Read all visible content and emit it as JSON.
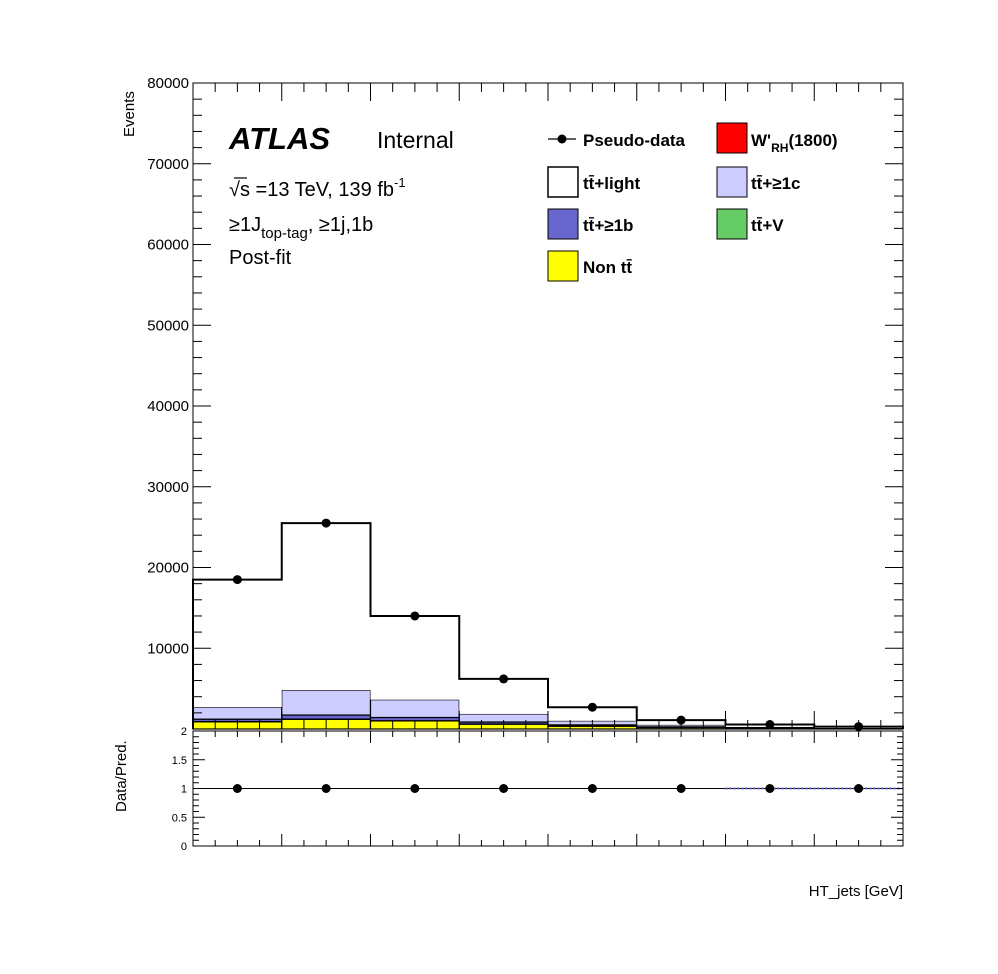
{
  "annotations": {
    "atlas": "ATLAS",
    "internal": "Internal",
    "energy": "√s =13 TeV, 139 fb",
    "energy_sup": "-1",
    "region_main": "≥1J",
    "region_sub": "top-tag",
    "region_rest": ", ≥1j,1b",
    "fit": "Post-fit"
  },
  "chart_data": [
    {
      "type": "bar",
      "stacked": true,
      "histogram": true,
      "ylabel": "Events",
      "ylim": [
        0,
        80000
      ],
      "yticks": [
        10000,
        20000,
        30000,
        40000,
        50000,
        60000,
        70000,
        80000
      ],
      "n_bins": 8,
      "bin_edges": [
        0,
        1,
        2,
        3,
        4,
        5,
        6,
        7,
        8
      ],
      "series": [
        {
          "name": "Non tt̄",
          "color": "#ffff00",
          "values": [
            900,
            1200,
            1000,
            600,
            350,
            180,
            90,
            50
          ]
        },
        {
          "name": "tt̄+V",
          "color": "#66cc66",
          "values": [
            20,
            30,
            25,
            15,
            10,
            5,
            3,
            2
          ]
        },
        {
          "name": "tt̄+≥1b",
          "color": "#6666cc",
          "values": [
            300,
            500,
            400,
            250,
            150,
            80,
            40,
            20
          ]
        },
        {
          "name": "tt̄+≥1c",
          "color": "#ccccff",
          "values": [
            1500,
            3100,
            2200,
            1000,
            500,
            250,
            120,
            60
          ]
        },
        {
          "name": "tt̄+light",
          "color": "#ffffff",
          "values": [
            15780,
            20670,
            10375,
            4335,
            1690,
            585,
            297,
            168
          ]
        },
        {
          "name": "W'RH(1800)",
          "color": "#ff0000",
          "values": [
            0,
            0,
            0,
            0,
            0,
            0,
            0,
            0
          ]
        }
      ],
      "data": {
        "name": "Pseudo-data",
        "values": [
          18500,
          25500,
          14000,
          6200,
          2700,
          1100,
          550,
          300
        ]
      }
    },
    {
      "type": "scatter",
      "ylabel": "Data/Pred.",
      "xlabel": "HT_jets [GeV]",
      "ylim": [
        0,
        2
      ],
      "yticks": [
        "0",
        "0.5",
        "1",
        "1.5",
        "2"
      ],
      "bin_centers": [
        0.5,
        1.5,
        2.5,
        3.5,
        4.5,
        5.5,
        6.5,
        7.5
      ],
      "values": [
        1,
        1,
        1,
        1,
        1,
        1,
        1,
        1
      ],
      "reference_line": 1
    }
  ],
  "legend": [
    {
      "label": "Pseudo-data",
      "type": "marker"
    },
    {
      "label": "W'",
      "sub": "RH",
      "suffix": "(1800)",
      "color": "#ff0000",
      "type": "box"
    },
    {
      "label": "tt̄+light",
      "color": "#ffffff",
      "type": "box"
    },
    {
      "label": "tt̄+≥1c",
      "color": "#ccccff",
      "type": "box"
    },
    {
      "label": "tt̄+≥1b",
      "color": "#6666cc",
      "type": "box"
    },
    {
      "label": "tt̄+V",
      "color": "#66cc66",
      "type": "box"
    },
    {
      "label": "Non tt̄",
      "color": "#ffff00",
      "type": "box"
    }
  ]
}
